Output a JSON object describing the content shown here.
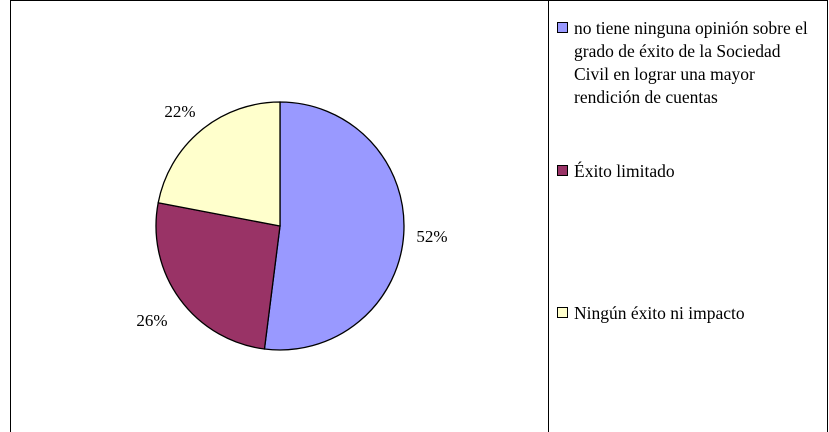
{
  "chart_data": {
    "type": "pie",
    "categories": [
      "no tiene ninguna opinión sobre el grado de éxito de la Sociedad Civil en lograr una mayor rendición de cuentas",
      "Éxito limitado",
      "Ningún éxito ni impacto"
    ],
    "values": [
      52,
      26,
      22
    ],
    "value_labels": [
      "52%",
      "26%",
      "22%"
    ],
    "colors": [
      "#9999FF",
      "#993366",
      "#FFFFCC"
    ],
    "legend": "right",
    "title": ""
  }
}
